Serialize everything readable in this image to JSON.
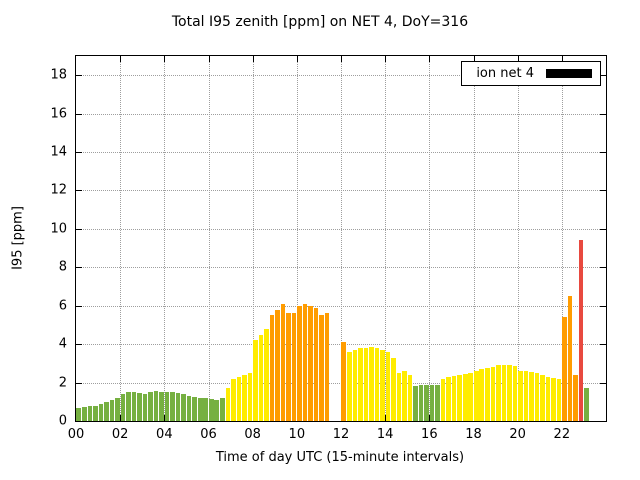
{
  "chart_data": {
    "type": "bar",
    "title": "Total I95 zenith [ppm] on NET 4, DoY=316",
    "xlabel": "Time of day UTC (15-minute intervals)",
    "ylabel": "I95 [ppm]",
    "xlim": [
      0,
      24
    ],
    "ylim": [
      0,
      19
    ],
    "interval_hours": 0.25,
    "grid": "dotted",
    "xticks": [
      "00",
      "02",
      "04",
      "06",
      "08",
      "10",
      "12",
      "14",
      "16",
      "18",
      "20",
      "22"
    ],
    "yticks": [
      0,
      2,
      4,
      6,
      8,
      10,
      12,
      14,
      16,
      18
    ],
    "legend": {
      "label": "ion net 4",
      "swatch_color": "#000000",
      "position": "top-right"
    },
    "colors": {
      "g": "#76b041",
      "y": "#ffec00",
      "o": "#ff9c00",
      "r": "#e8493f"
    },
    "bars": [
      [
        0.0,
        0.7,
        "g"
      ],
      [
        0.25,
        0.75,
        "g"
      ],
      [
        0.5,
        0.8,
        "g"
      ],
      [
        0.75,
        0.8,
        "g"
      ],
      [
        1.0,
        0.9,
        "g"
      ],
      [
        1.25,
        1.0,
        "g"
      ],
      [
        1.5,
        1.1,
        "g"
      ],
      [
        1.75,
        1.2,
        "g"
      ],
      [
        2.0,
        1.4,
        "g"
      ],
      [
        2.25,
        1.5,
        "g"
      ],
      [
        2.5,
        1.5,
        "g"
      ],
      [
        2.75,
        1.45,
        "g"
      ],
      [
        3.0,
        1.4,
        "g"
      ],
      [
        3.25,
        1.5,
        "g"
      ],
      [
        3.5,
        1.55,
        "g"
      ],
      [
        3.75,
        1.5,
        "g"
      ],
      [
        4.0,
        1.5,
        "g"
      ],
      [
        4.25,
        1.5,
        "g"
      ],
      [
        4.5,
        1.45,
        "g"
      ],
      [
        4.75,
        1.4,
        "g"
      ],
      [
        5.0,
        1.3,
        "g"
      ],
      [
        5.25,
        1.25,
        "g"
      ],
      [
        5.5,
        1.2,
        "g"
      ],
      [
        5.75,
        1.2,
        "g"
      ],
      [
        6.0,
        1.15,
        "g"
      ],
      [
        6.25,
        1.1,
        "g"
      ],
      [
        6.5,
        1.2,
        "g"
      ],
      [
        6.75,
        1.7,
        "y"
      ],
      [
        7.0,
        2.2,
        "y"
      ],
      [
        7.25,
        2.3,
        "y"
      ],
      [
        7.5,
        2.4,
        "y"
      ],
      [
        7.75,
        2.5,
        "y"
      ],
      [
        8.0,
        4.2,
        "y"
      ],
      [
        8.25,
        4.5,
        "y"
      ],
      [
        8.5,
        4.8,
        "y"
      ],
      [
        8.75,
        5.5,
        "o"
      ],
      [
        9.0,
        5.8,
        "o"
      ],
      [
        9.25,
        6.1,
        "o"
      ],
      [
        9.5,
        5.6,
        "o"
      ],
      [
        9.75,
        5.6,
        "o"
      ],
      [
        10.0,
        6.0,
        "o"
      ],
      [
        10.25,
        6.1,
        "o"
      ],
      [
        10.5,
        6.0,
        "o"
      ],
      [
        10.75,
        5.9,
        "o"
      ],
      [
        11.0,
        5.5,
        "o"
      ],
      [
        11.25,
        5.6,
        "o"
      ],
      [
        12.0,
        4.1,
        "o"
      ],
      [
        12.25,
        3.6,
        "y"
      ],
      [
        12.5,
        3.7,
        "y"
      ],
      [
        12.75,
        3.8,
        "y"
      ],
      [
        13.0,
        3.8,
        "y"
      ],
      [
        13.25,
        3.85,
        "y"
      ],
      [
        13.5,
        3.8,
        "y"
      ],
      [
        13.75,
        3.7,
        "y"
      ],
      [
        14.0,
        3.6,
        "y"
      ],
      [
        14.25,
        3.3,
        "y"
      ],
      [
        14.5,
        2.5,
        "y"
      ],
      [
        14.75,
        2.6,
        "y"
      ],
      [
        15.0,
        2.4,
        "y"
      ],
      [
        15.25,
        1.8,
        "g"
      ],
      [
        15.5,
        1.85,
        "g"
      ],
      [
        15.75,
        1.85,
        "g"
      ],
      [
        16.0,
        1.9,
        "g"
      ],
      [
        16.25,
        1.9,
        "g"
      ],
      [
        16.5,
        2.2,
        "y"
      ],
      [
        16.75,
        2.3,
        "y"
      ],
      [
        17.0,
        2.35,
        "y"
      ],
      [
        17.25,
        2.4,
        "y"
      ],
      [
        17.5,
        2.45,
        "y"
      ],
      [
        17.75,
        2.5,
        "y"
      ],
      [
        18.0,
        2.6,
        "y"
      ],
      [
        18.25,
        2.7,
        "y"
      ],
      [
        18.5,
        2.75,
        "y"
      ],
      [
        18.75,
        2.8,
        "y"
      ],
      [
        19.0,
        2.9,
        "y"
      ],
      [
        19.25,
        2.9,
        "y"
      ],
      [
        19.5,
        2.9,
        "y"
      ],
      [
        19.75,
        2.85,
        "y"
      ],
      [
        20.0,
        2.6,
        "y"
      ],
      [
        20.25,
        2.6,
        "y"
      ],
      [
        20.5,
        2.55,
        "y"
      ],
      [
        20.75,
        2.5,
        "y"
      ],
      [
        21.0,
        2.4,
        "y"
      ],
      [
        21.25,
        2.3,
        "y"
      ],
      [
        21.5,
        2.25,
        "y"
      ],
      [
        21.75,
        2.2,
        "y"
      ],
      [
        22.0,
        5.4,
        "o"
      ],
      [
        22.25,
        6.5,
        "o"
      ],
      [
        22.5,
        2.4,
        "o"
      ],
      [
        22.75,
        9.4,
        "r"
      ],
      [
        23.0,
        1.7,
        "g"
      ]
    ]
  }
}
